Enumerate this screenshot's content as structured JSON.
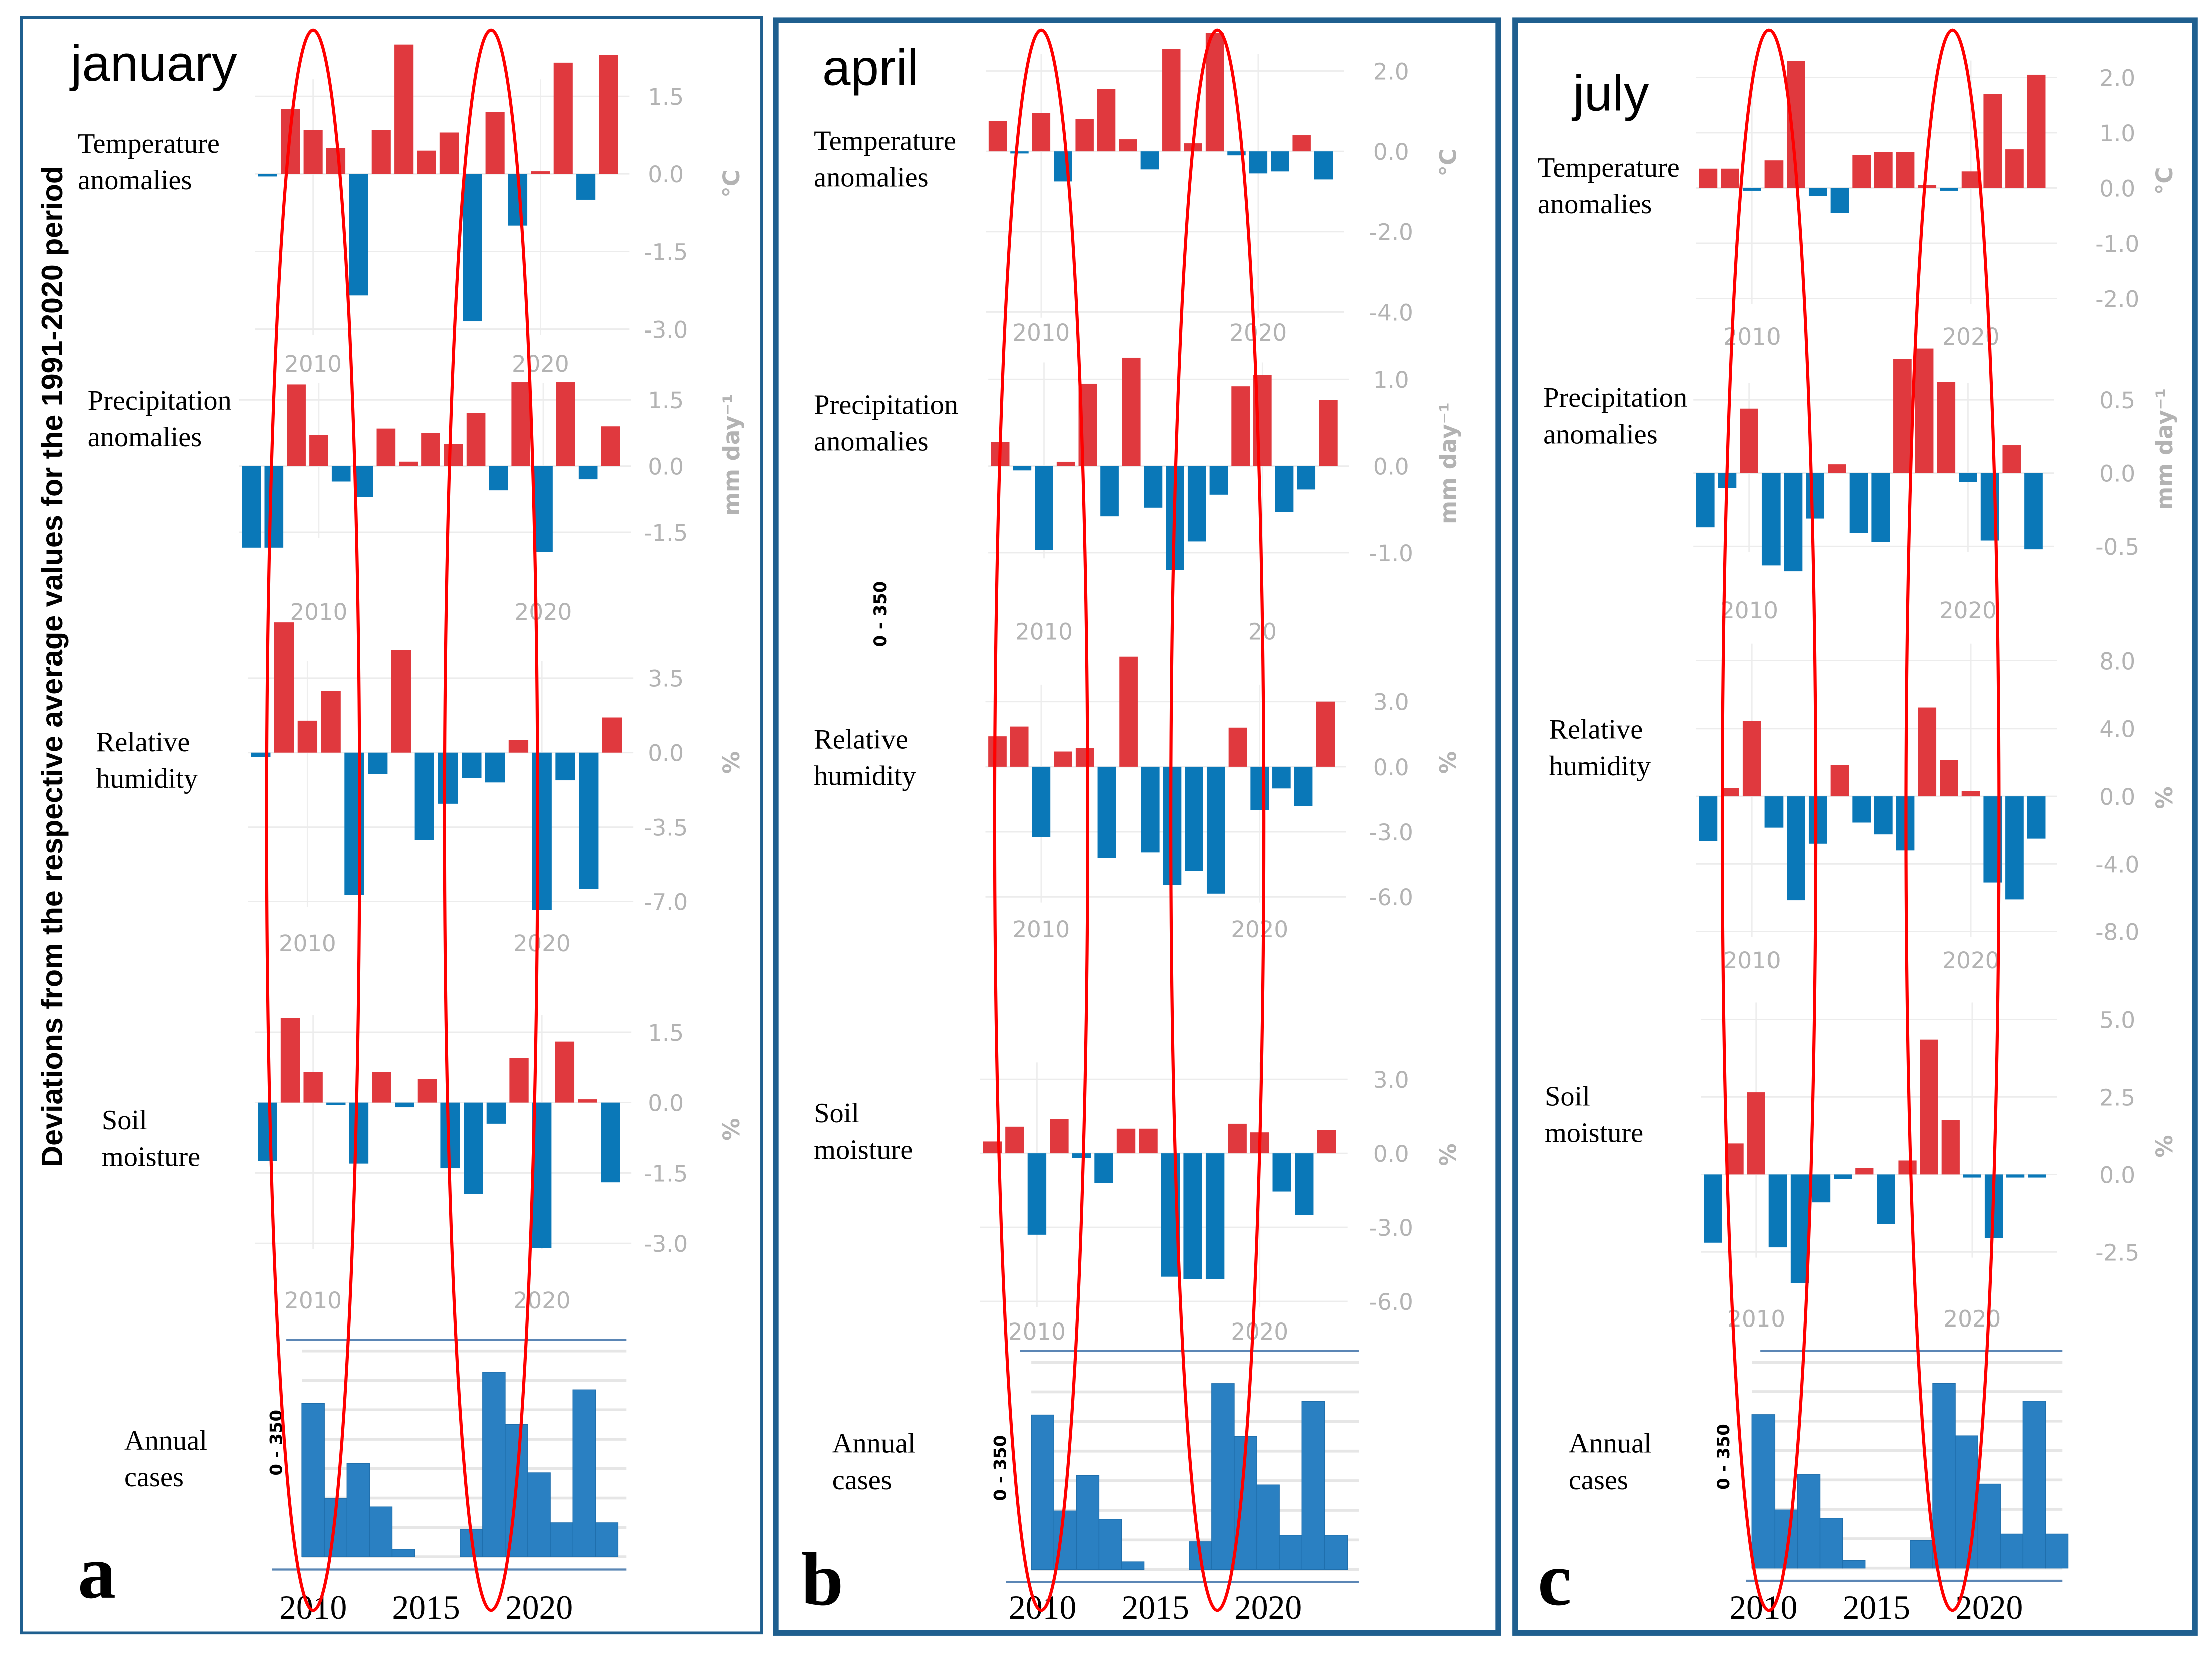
{
  "figure": {
    "y_axis_title": "Deviations from the  respective average values for the 1991-2020 period",
    "row_labels": [
      [
        "Temperature",
        "anomalies"
      ],
      [
        "Precipitation",
        "anomalies"
      ],
      [
        "Relative",
        "humidity"
      ],
      [
        "Soil",
        "moisture"
      ],
      [
        "Annual",
        "cases"
      ]
    ],
    "stray_scale_label": "0 - 350",
    "colors": {
      "positive": "#e0393e",
      "negative": "#0a78b8",
      "cases": "#2a80c2",
      "ellipse": "#ff0000",
      "border": "#1f5f8f"
    }
  },
  "panels": [
    {
      "letter": "a",
      "month": "january"
    },
    {
      "letter": "b",
      "month": "april"
    },
    {
      "letter": "c",
      "month": "july"
    }
  ],
  "chart_data": {
    "type": "bar",
    "anomalies": [
      [
        {
          "variable": "Temperature anomalies",
          "unit": "°C",
          "first_year": 2008,
          "values": [
            -0.05,
            1.25,
            0.85,
            0.5,
            -2.35,
            0.85,
            2.5,
            0.45,
            0.8,
            -2.85,
            1.2,
            -1.0,
            0.05,
            2.15,
            -0.5,
            2.3
          ],
          "yticks": [
            "1.5",
            "0.0",
            "-1.5",
            "-3.0"
          ],
          "xticks": [
            "2010",
            "2020"
          ]
        },
        {
          "variable": "Precipitation anomalies",
          "unit": "mm day⁻¹",
          "first_year": 2007,
          "values": [
            -1.85,
            -1.85,
            1.85,
            0.7,
            -0.35,
            -0.7,
            0.85,
            0.1,
            0.75,
            0.5,
            1.2,
            -0.55,
            1.9,
            -1.95,
            1.9,
            -0.3,
            0.9
          ],
          "yticks": [
            "1.5",
            "0.0",
            "-1.5"
          ],
          "xticks": [
            "2010",
            "2020"
          ]
        },
        {
          "variable": "Relative humidity",
          "unit": "%",
          "first_year": 2008,
          "values": [
            -0.2,
            6.1,
            1.5,
            2.9,
            -6.7,
            -1.0,
            4.8,
            -4.1,
            -2.4,
            -1.2,
            -1.4,
            0.6,
            -7.4,
            -1.3,
            -6.4,
            1.65
          ],
          "yticks": [
            "3.5",
            "0.0",
            "-3.5",
            "-7.0"
          ],
          "xticks": [
            "2010",
            "2020"
          ]
        },
        {
          "variable": "Soil moisture",
          "unit": "%",
          "first_year": 2008,
          "values": [
            -1.25,
            1.8,
            0.65,
            -0.05,
            -1.3,
            0.65,
            -0.1,
            0.5,
            -1.4,
            -1.95,
            -0.45,
            0.95,
            -3.1,
            1.3,
            0.07,
            -1.7
          ],
          "yticks": [
            "1.5",
            "0.0",
            "-1.5",
            "-3.0"
          ],
          "xticks": [
            "2010",
            "2020"
          ]
        }
      ],
      [
        {
          "variable": "Temperature anomalies",
          "unit": "°C",
          "first_year": 2008,
          "values": [
            0.75,
            -0.05,
            0.95,
            -0.75,
            0.8,
            1.55,
            0.3,
            -0.45,
            2.55,
            0.2,
            2.95,
            -0.1,
            -0.55,
            -0.5,
            0.4,
            -0.7
          ],
          "yticks": [
            "2.0",
            "0.0",
            "-2.0",
            "-4.0"
          ],
          "xticks": [
            "2010",
            "2020"
          ]
        },
        {
          "variable": "Precipitation anomalies",
          "unit": "mm day⁻¹",
          "first_year": 2008,
          "values": [
            0.28,
            -0.05,
            -0.97,
            0.05,
            0.95,
            -0.58,
            1.25,
            -0.48,
            -1.2,
            -0.87,
            -0.33,
            0.92,
            1.05,
            -0.53,
            -0.27,
            0.76
          ],
          "yticks": [
            "1.0",
            "0.0",
            "-1.0"
          ],
          "xticks": [
            "2010",
            "20"
          ]
        },
        {
          "variable": "Relative humidity",
          "unit": "%",
          "first_year": 2008,
          "values": [
            1.4,
            1.85,
            -3.25,
            0.7,
            0.85,
            -4.2,
            5.05,
            -3.95,
            -5.45,
            -4.8,
            -5.85,
            1.8,
            -2.0,
            -1.0,
            -1.8,
            3.0
          ],
          "yticks": [
            "3.0",
            "0.0",
            "-3.0",
            "-6.0"
          ],
          "xticks": [
            "2010",
            "2020"
          ]
        },
        {
          "variable": "Soil moisture",
          "unit": "%",
          "first_year": 2008,
          "values": [
            0.48,
            1.08,
            -3.3,
            1.4,
            -0.2,
            -1.2,
            1.0,
            1.0,
            -5.0,
            -5.1,
            -5.1,
            1.2,
            0.85,
            -1.55,
            -2.5,
            0.95
          ],
          "yticks": [
            "3.0",
            "0.0",
            "-3.0",
            "-6.0"
          ],
          "xticks": [
            "2010",
            "2020"
          ]
        }
      ],
      [
        {
          "variable": "Temperature anomalies",
          "unit": "°C",
          "first_year": 2008,
          "values": [
            0.35,
            0.35,
            -0.05,
            0.5,
            2.3,
            -0.15,
            -0.45,
            0.6,
            0.65,
            0.65,
            0.05,
            -0.05,
            0.3,
            1.7,
            0.7,
            2.05
          ],
          "yticks": [
            "2.0",
            "1.0",
            "0.0",
            "-1.0",
            "-2.0"
          ],
          "xticks": [
            "2010",
            "2020"
          ]
        },
        {
          "variable": "Precipitation anomalies",
          "unit": "mm day⁻¹",
          "first_year": 2008,
          "values": [
            -0.37,
            -0.1,
            0.44,
            -0.63,
            -0.67,
            -0.31,
            0.06,
            -0.41,
            -0.47,
            0.78,
            0.85,
            0.62,
            -0.06,
            -0.46,
            0.19,
            -0.52
          ],
          "yticks": [
            "0.5",
            "0.0",
            "-0.5"
          ],
          "xticks": [
            "2010",
            "2020"
          ]
        },
        {
          "variable": "Relative humidity",
          "unit": "%",
          "first_year": 2008,
          "values": [
            -2.65,
            0.5,
            4.45,
            -1.85,
            -6.15,
            -2.8,
            1.85,
            -1.55,
            -2.25,
            -3.2,
            5.25,
            2.15,
            0.3,
            -5.1,
            -6.1,
            -2.5
          ],
          "yticks": [
            "8.0",
            "4.0",
            "0.0",
            "-4.0",
            "-8.0"
          ],
          "xticks": [
            "2010",
            "2020"
          ]
        },
        {
          "variable": "Soil moisture",
          "unit": "%",
          "first_year": 2008,
          "values": [
            -2.2,
            1.0,
            2.65,
            -2.35,
            -3.5,
            -0.9,
            -0.15,
            0.2,
            -1.6,
            0.45,
            4.35,
            1.75,
            -0.1,
            -2.05,
            -0.1,
            -0.1
          ],
          "yticks": [
            "5.0",
            "2.5",
            "0.0",
            "-2.5"
          ],
          "xticks": [
            "2010",
            "2020"
          ]
        }
      ]
    ],
    "annual_cases": {
      "variable": "Annual cases",
      "years": [
        2010,
        2011,
        2012,
        2013,
        2014,
        2015,
        2016,
        2017,
        2018,
        2019,
        2020,
        2021,
        2022,
        2023
      ],
      "values": [
        261,
        99,
        159,
        85,
        13,
        null,
        null,
        47,
        314,
        225,
        143,
        58,
        284,
        58
      ],
      "ylim": [
        0,
        350
      ],
      "scale_label": "0 - 350",
      "xticks": [
        "2010",
        "2015",
        "2020"
      ]
    }
  }
}
